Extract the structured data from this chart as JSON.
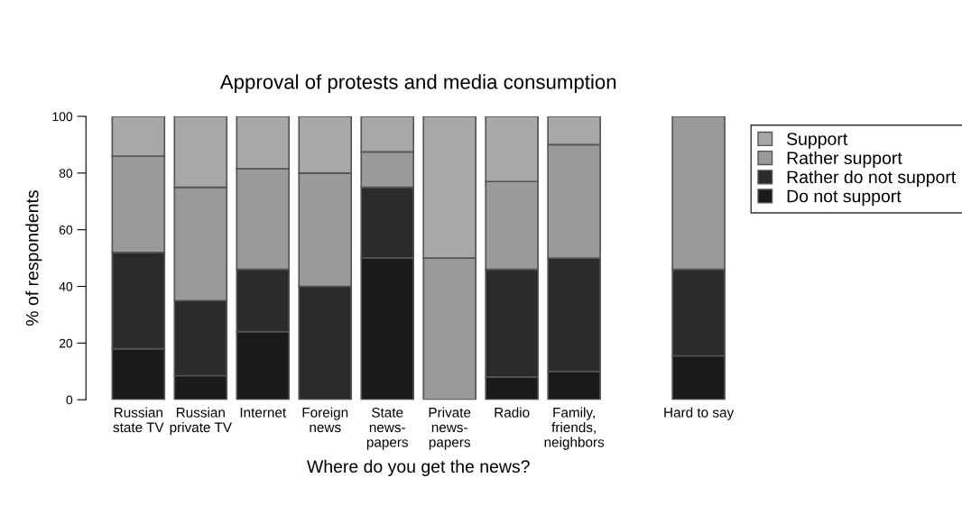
{
  "chart_data": {
    "type": "bar",
    "title": "Approval of protests and media consumption",
    "xlabel": "Where do you get the news?",
    "ylabel": "% of respondents",
    "categories": [
      "Russian\nstate TV",
      "Russian\nprivate TV",
      "Internet",
      "Foreign\nnews",
      "State\nnews-\npapers",
      "Private\nnews-\npapers",
      "Radio",
      "Family,\nfriends,\nneighbors",
      null,
      "Hard to say"
    ],
    "stacked": true,
    "series": [
      {
        "name": "Do not support",
        "color": "#1a1a1a",
        "values": [
          18,
          8.5,
          24,
          0,
          50,
          0,
          8,
          10,
          null,
          15.5
        ]
      },
      {
        "name": "Rather do not support",
        "color": "#2b2b2b",
        "values": [
          34,
          26.5,
          22,
          40,
          25,
          0,
          38,
          40,
          null,
          30.5
        ]
      },
      {
        "name": "Rather support",
        "color": "#9a9a9a",
        "values": [
          34,
          40,
          35.5,
          40,
          12.5,
          50,
          31,
          40,
          null,
          54
        ]
      },
      {
        "name": "Support",
        "color": "#a8a8a8",
        "values": [
          14,
          25,
          18.5,
          20,
          12.5,
          50,
          23,
          10,
          null,
          0
        ]
      }
    ],
    "ylim": [
      0,
      100
    ],
    "yticks": [
      0,
      20,
      40,
      60,
      80,
      100
    ],
    "legend": "right"
  }
}
